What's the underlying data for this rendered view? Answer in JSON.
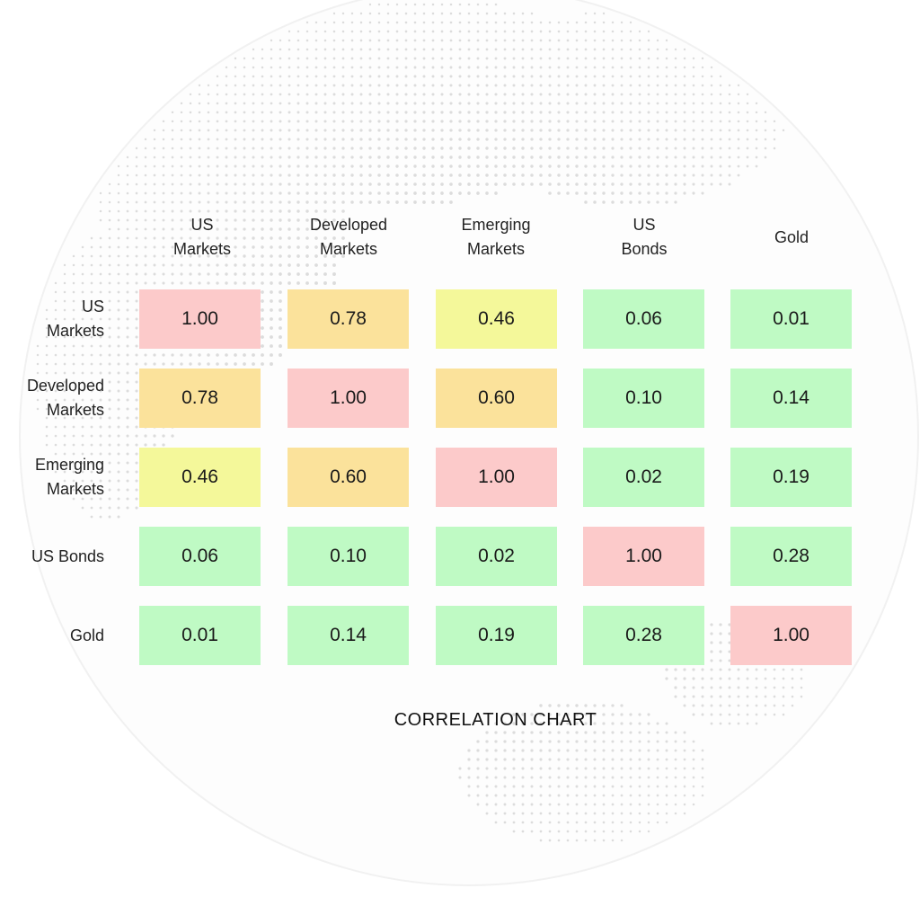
{
  "chart_data": {
    "type": "heatmap",
    "title": "CORRELATION CHART",
    "columns": [
      "US\nMarkets",
      "Developed\nMarkets",
      "Emerging\nMarkets",
      "US\nBonds",
      "Gold"
    ],
    "rows": [
      "US\nMarkets",
      "Developed\nMarkets",
      "Emerging\nMarkets",
      "US Bonds",
      "Gold"
    ],
    "values": [
      [
        "1.00",
        "0.78",
        "0.46",
        "0.06",
        "0.01"
      ],
      [
        "0.78",
        "1.00",
        "0.60",
        "0.10",
        "0.14"
      ],
      [
        "0.46",
        "0.60",
        "1.00",
        "0.02",
        "0.19"
      ],
      [
        "0.06",
        "0.10",
        "0.02",
        "1.00",
        "0.28"
      ],
      [
        "0.01",
        "0.14",
        "0.19",
        "0.28",
        "1.00"
      ]
    ],
    "colors": {
      "high": "#fccaca",
      "medium_high": "#fbe29b",
      "medium": "#f4f89a",
      "low": "#bffac4"
    }
  }
}
